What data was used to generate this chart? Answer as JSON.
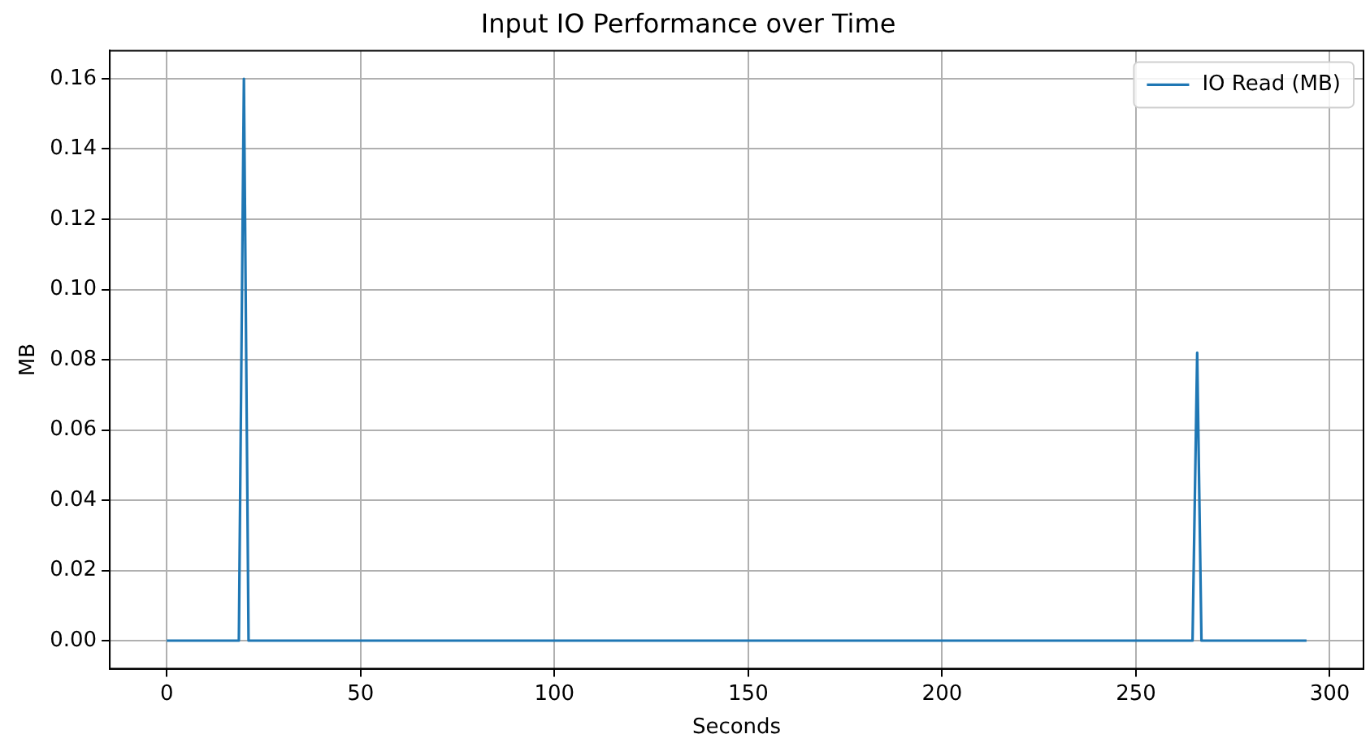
{
  "chart_data": {
    "type": "line",
    "title": "Input IO Performance over Time",
    "xlabel": "Seconds",
    "ylabel": "MB",
    "series": [
      {
        "name": "IO Read (MB)",
        "color": "#1f77b4",
        "x": [
          0,
          18.6,
          19.9,
          21.1,
          264.6,
          265.8,
          266.9,
          294
        ],
        "values": [
          0,
          0,
          0.16,
          0,
          0,
          0.082,
          0,
          0
        ]
      }
    ],
    "xlim": [
      -14.7,
      308.7
    ],
    "xticks": [
      0,
      50,
      100,
      150,
      200,
      250,
      300
    ],
    "ylim": [
      -0.008,
      0.168
    ],
    "yticks": [
      {
        "value": 0,
        "label": "0.00"
      },
      {
        "value": 0.02,
        "label": "0.02"
      },
      {
        "value": 0.04,
        "label": "0.04"
      },
      {
        "value": 0.06,
        "label": "0.06"
      },
      {
        "value": 0.08,
        "label": "0.08"
      },
      {
        "value": 0.1,
        "label": "0.10"
      },
      {
        "value": 0.12,
        "label": "0.12"
      },
      {
        "value": 0.14,
        "label": "0.14"
      },
      {
        "value": 0.16,
        "label": "0.16"
      }
    ],
    "grid": true,
    "legend": "top right",
    "marker": "none",
    "line_style": "solid"
  }
}
